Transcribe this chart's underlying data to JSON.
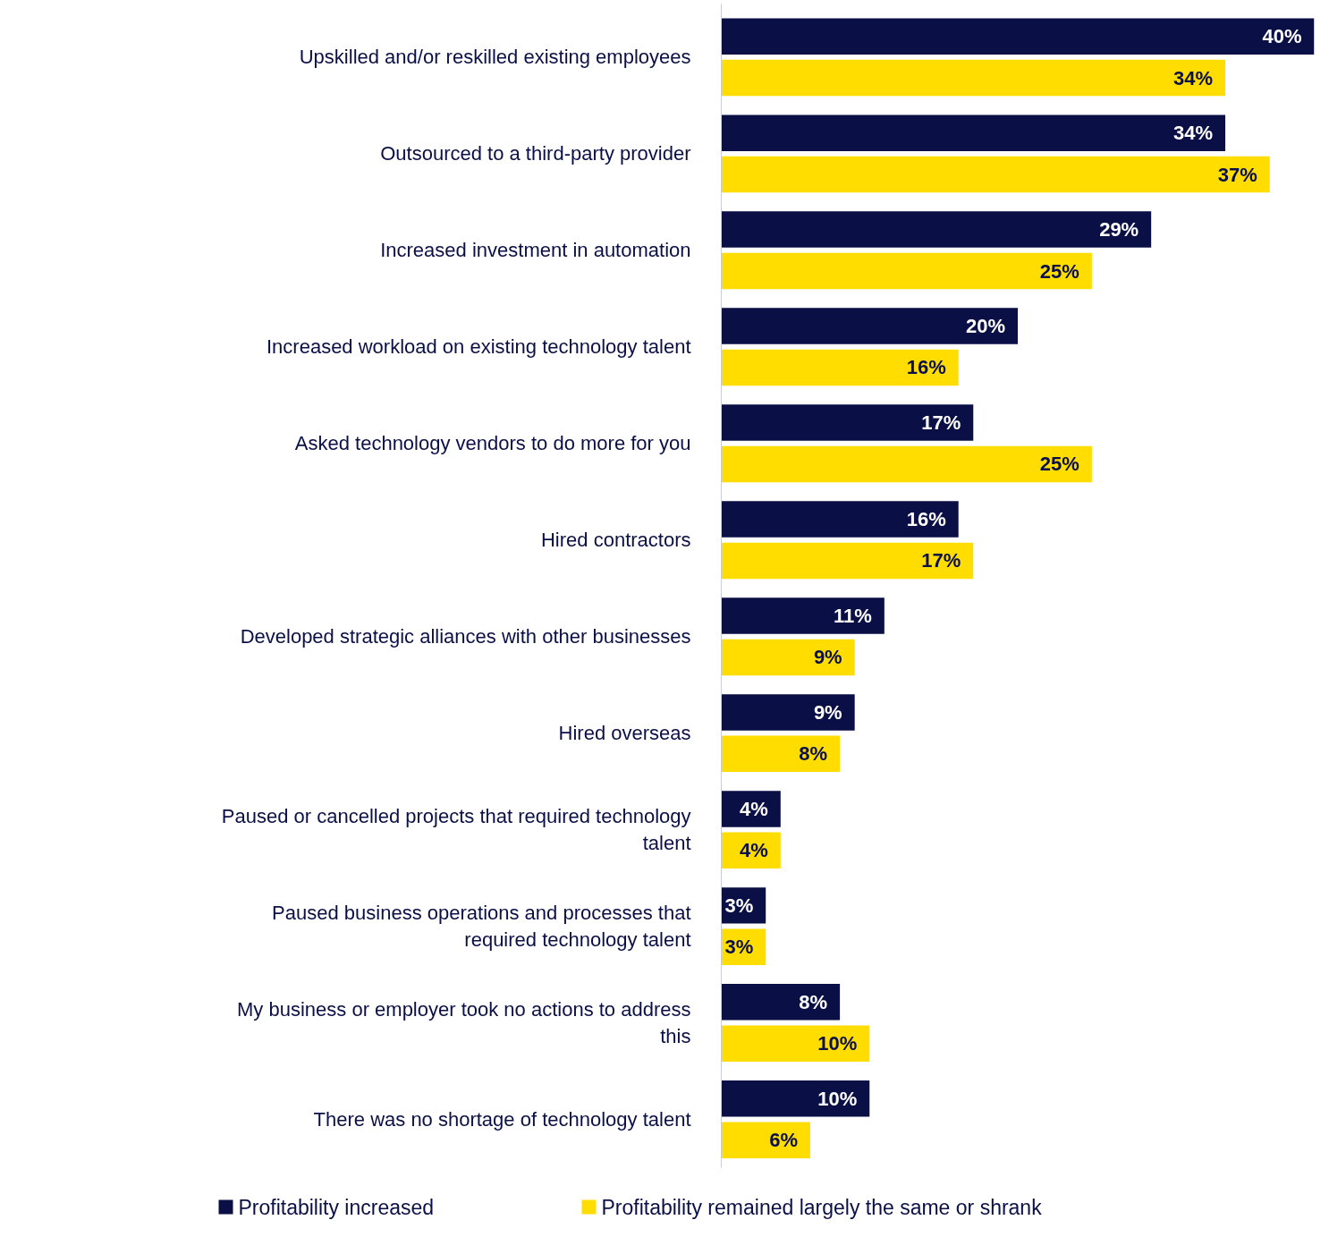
{
  "chart_data": {
    "type": "bar",
    "orientation": "horizontal",
    "categories": [
      "Upskilled and/or reskilled existing employees",
      "Outsourced to a third-party provider",
      "Increased investment in automation",
      "Increased workload on existing technology talent",
      "Asked technology vendors to do more for you",
      "Hired contractors",
      "Developed strategic alliances with other businesses",
      "Hired overseas",
      "Paused or cancelled projects that required technology talent",
      "Paused business operations and processes that required technology talent",
      "My business or employer took no actions to address this",
      "There was no shortage of technology talent"
    ],
    "series": [
      {
        "name": "Profitability increased",
        "color": "#0a0f45",
        "values": [
          40,
          34,
          29,
          20,
          17,
          16,
          11,
          9,
          4,
          3,
          8,
          10
        ],
        "value_labels": [
          "40%",
          "34%",
          "29%",
          "20%",
          "17%",
          "16%",
          "11%",
          "9%",
          "4%",
          "3%",
          "8%",
          "10%"
        ]
      },
      {
        "name": "Profitability remained largely the same or shrank",
        "color": "#ffdd00",
        "values": [
          34,
          37,
          25,
          16,
          25,
          17,
          9,
          8,
          4,
          3,
          10,
          6
        ],
        "value_labels": [
          "34%",
          "37%",
          "25%",
          "16%",
          "25%",
          "17%",
          "9%",
          "8%",
          "4%",
          "3%",
          "10%",
          "6%"
        ]
      }
    ],
    "legend": "bottom",
    "tick_labels": "y"
  }
}
